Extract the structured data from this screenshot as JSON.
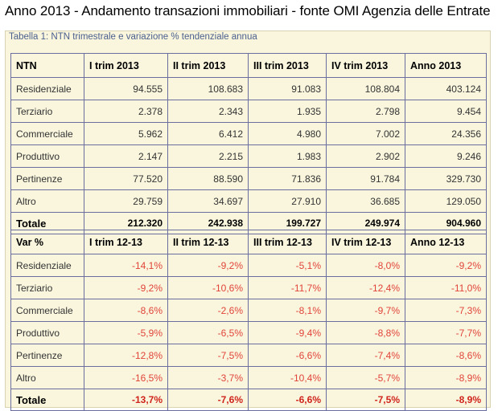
{
  "title": "Anno 2013 - Andamento transazioni immobiliari - fonte OMI Agenzia delle Entrate",
  "caption": "Tabella 1: NTN trimestrale e variazione % tendenziale annua",
  "ntn_table": {
    "headers": [
      "NTN",
      "I trim 2013",
      "II trim 2013",
      "III trim 2013",
      "IV trim 2013",
      "Anno 2013"
    ],
    "rows": [
      [
        "Residenziale",
        "94.555",
        "108.683",
        "91.083",
        "108.804",
        "403.124"
      ],
      [
        "Terziario",
        "2.378",
        "2.343",
        "1.935",
        "2.798",
        "9.454"
      ],
      [
        "Commerciale",
        "5.962",
        "6.412",
        "4.980",
        "7.002",
        "24.356"
      ],
      [
        "Produttivo",
        "2.147",
        "2.215",
        "1.983",
        "2.902",
        "9.246"
      ],
      [
        "Pertinenze",
        "77.520",
        "88.590",
        "71.836",
        "91.784",
        "329.730"
      ],
      [
        "Altro",
        "29.759",
        "34.697",
        "27.910",
        "36.685",
        "129.050"
      ]
    ],
    "total": [
      "Totale",
      "212.320",
      "242.938",
      "199.727",
      "249.974",
      "904.960"
    ]
  },
  "var_table": {
    "headers": [
      "Var %",
      "I trim 12-13",
      "II trim 12-13",
      "III trim 12-13",
      "IV trim 12-13",
      "Anno 12-13"
    ],
    "rows": [
      [
        "Residenziale",
        "-14,1%",
        "-9,2%",
        "-5,1%",
        "-8,0%",
        "-9,2%"
      ],
      [
        "Terziario",
        "-9,2%",
        "-10,6%",
        "-11,7%",
        "-12,4%",
        "-11,0%"
      ],
      [
        "Commerciale",
        "-8,6%",
        "-2,6%",
        "-8,1%",
        "-9,7%",
        "-7,3%"
      ],
      [
        "Produttivo",
        "-5,9%",
        "-6,5%",
        "-9,4%",
        "-8,8%",
        "-7,7%"
      ],
      [
        "Pertinenze",
        "-12,8%",
        "-7,5%",
        "-6,6%",
        "-7,4%",
        "-8,6%"
      ],
      [
        "Altro",
        "-16,5%",
        "-3,7%",
        "-10,4%",
        "-5,7%",
        "-8,9%"
      ]
    ],
    "total": [
      "Totale",
      "-13,7%",
      "-7,6%",
      "-6,6%",
      "-7,5%",
      "-8,9%"
    ]
  },
  "colors": {
    "background": "#f9f6dd",
    "border": "#6b6d9e",
    "caption": "#4b5f8f",
    "negative": "#e2433a"
  }
}
